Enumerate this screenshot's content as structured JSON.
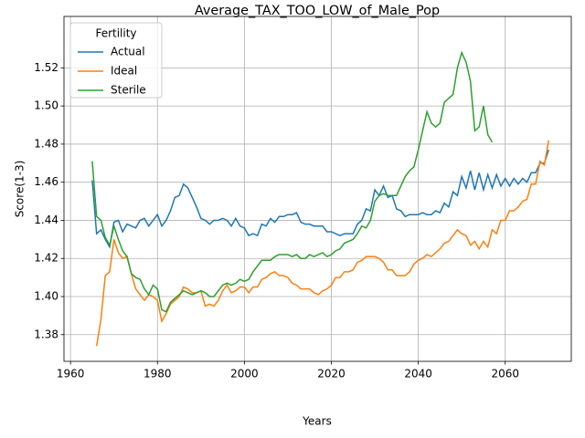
{
  "chart_data": {
    "type": "line",
    "title": "Average_TAX_TOO_LOW_of_Male_Pop",
    "x_label": "Years",
    "y_label": "Score(1-3)",
    "x": [
      1965,
      1966,
      1967,
      1968,
      1969,
      1970,
      1971,
      1972,
      1973,
      1974,
      1975,
      1976,
      1977,
      1978,
      1979,
      1980,
      1981,
      1982,
      1983,
      1984,
      1985,
      1986,
      1987,
      1988,
      1989,
      1990,
      1991,
      1992,
      1993,
      1994,
      1995,
      1996,
      1997,
      1998,
      1999,
      2000,
      2001,
      2002,
      2003,
      2004,
      2005,
      2006,
      2007,
      2008,
      2009,
      2010,
      2011,
      2012,
      2013,
      2014,
      2015,
      2016,
      2017,
      2018,
      2019,
      2020,
      2021,
      2022,
      2023,
      2024,
      2025,
      2026,
      2027,
      2028,
      2029,
      2030,
      2031,
      2032,
      2033,
      2034,
      2035,
      2036,
      2037,
      2038,
      2039,
      2040,
      2041,
      2042,
      2043,
      2044,
      2045,
      2046,
      2047,
      2048,
      2049,
      2050,
      2051,
      2052,
      2053,
      2054,
      2055,
      2056,
      2057,
      2058,
      2059,
      2060,
      2061,
      2062,
      2063,
      2064,
      2065,
      2066,
      2067,
      2068,
      2069,
      2070
    ],
    "series": [
      {
        "name": "Actual",
        "color": "#1f77b4",
        "values": [
          1.461,
          1.433,
          1.435,
          1.43,
          1.426,
          1.439,
          1.44,
          1.434,
          1.438,
          1.437,
          1.436,
          1.44,
          1.441,
          1.437,
          1.44,
          1.443,
          1.437,
          1.44,
          1.445,
          1.452,
          1.453,
          1.459,
          1.457,
          1.452,
          1.447,
          1.441,
          1.44,
          1.438,
          1.44,
          1.44,
          1.441,
          1.44,
          1.437,
          1.441,
          1.437,
          1.436,
          1.432,
          1.433,
          1.432,
          1.438,
          1.437,
          1.441,
          1.439,
          1.442,
          1.442,
          1.443,
          1.443,
          1.444,
          1.439,
          1.438,
          1.438,
          1.437,
          1.437,
          1.437,
          1.434,
          1.434,
          1.433,
          1.432,
          1.433,
          1.433,
          1.433,
          1.438,
          1.44,
          1.446,
          1.445,
          1.456,
          1.453,
          1.458,
          1.452,
          1.453,
          1.446,
          1.445,
          1.442,
          1.443,
          1.443,
          1.443,
          1.444,
          1.443,
          1.443,
          1.445,
          1.444,
          1.449,
          1.447,
          1.455,
          1.453,
          1.463,
          1.457,
          1.466,
          1.456,
          1.465,
          1.456,
          1.464,
          1.457,
          1.464,
          1.458,
          1.462,
          1.458,
          1.462,
          1.459,
          1.462,
          1.46,
          1.465,
          1.465,
          1.47,
          1.47,
          1.477
        ]
      },
      {
        "name": "Ideal",
        "color": "#ff7f0e",
        "values": [
          null,
          1.374,
          1.388,
          1.411,
          1.413,
          1.43,
          1.423,
          1.42,
          1.421,
          1.412,
          1.404,
          1.401,
          1.398,
          1.401,
          1.4,
          1.398,
          1.387,
          1.391,
          1.396,
          1.398,
          1.4,
          1.405,
          1.404,
          1.402,
          1.402,
          1.403,
          1.395,
          1.396,
          1.395,
          1.398,
          1.403,
          1.406,
          1.402,
          1.403,
          1.405,
          1.405,
          1.402,
          1.405,
          1.405,
          1.409,
          1.41,
          1.412,
          1.413,
          1.411,
          1.411,
          1.41,
          1.407,
          1.406,
          1.404,
          1.404,
          1.404,
          1.402,
          1.401,
          1.403,
          1.404,
          1.406,
          1.41,
          1.41,
          1.413,
          1.413,
          1.414,
          1.418,
          1.419,
          1.421,
          1.421,
          1.421,
          1.42,
          1.418,
          1.414,
          1.414,
          1.411,
          1.411,
          1.411,
          1.413,
          1.417,
          1.419,
          1.42,
          1.422,
          1.421,
          1.423,
          1.425,
          1.428,
          1.429,
          1.432,
          1.435,
          1.433,
          1.432,
          1.427,
          1.429,
          1.425,
          1.429,
          1.426,
          1.435,
          1.433,
          1.44,
          1.44,
          1.445,
          1.445,
          1.447,
          1.45,
          1.451,
          1.459,
          1.459,
          1.471,
          1.469,
          1.482
        ]
      },
      {
        "name": "Sterile",
        "color": "#2ca02c",
        "values": [
          1.471,
          1.442,
          1.44,
          1.431,
          1.427,
          1.437,
          1.43,
          1.424,
          1.421,
          1.412,
          1.41,
          1.409,
          1.404,
          1.401,
          1.406,
          1.404,
          1.393,
          1.392,
          1.397,
          1.399,
          1.401,
          1.403,
          1.402,
          1.401,
          1.402,
          1.403,
          1.402,
          1.4,
          1.4,
          1.403,
          1.406,
          1.407,
          1.406,
          1.407,
          1.409,
          1.408,
          1.409,
          1.413,
          1.416,
          1.419,
          1.419,
          1.419,
          1.421,
          1.422,
          1.422,
          1.422,
          1.421,
          1.422,
          1.42,
          1.42,
          1.422,
          1.421,
          1.422,
          1.423,
          1.421,
          1.422,
          1.424,
          1.425,
          1.428,
          1.429,
          1.43,
          1.433,
          1.437,
          1.436,
          1.44,
          1.45,
          1.453,
          1.454,
          1.453,
          1.453,
          1.453,
          1.458,
          1.463,
          1.466,
          1.468,
          1.477,
          1.487,
          1.497,
          1.491,
          1.489,
          1.491,
          1.502,
          1.504,
          1.506,
          1.52,
          1.528,
          1.523,
          1.513,
          1.487,
          1.489,
          1.5,
          1.485,
          1.481,
          null,
          null,
          null,
          null,
          null,
          null,
          null,
          null,
          null,
          null,
          null,
          null,
          null
        ]
      }
    ],
    "xlim": [
      1958.5,
      2075.2
    ],
    "xticks": [
      1960,
      1980,
      2000,
      2020,
      2040,
      2060
    ],
    "ylim": [
      1.366,
      1.547
    ],
    "yticks": [
      {
        "value": 1.38,
        "label": "1.38"
      },
      {
        "value": 1.4,
        "label": "1.40"
      },
      {
        "value": 1.42,
        "label": "1.42"
      },
      {
        "value": 1.44,
        "label": "1.44"
      },
      {
        "value": 1.46,
        "label": "1.46"
      },
      {
        "value": 1.48,
        "label": "1.48"
      },
      {
        "value": 1.5,
        "label": "1.50"
      },
      {
        "value": 1.52,
        "label": "1.52"
      }
    ],
    "grid": true,
    "legend_title": "Fertility",
    "legend_loc": "upper left"
  }
}
